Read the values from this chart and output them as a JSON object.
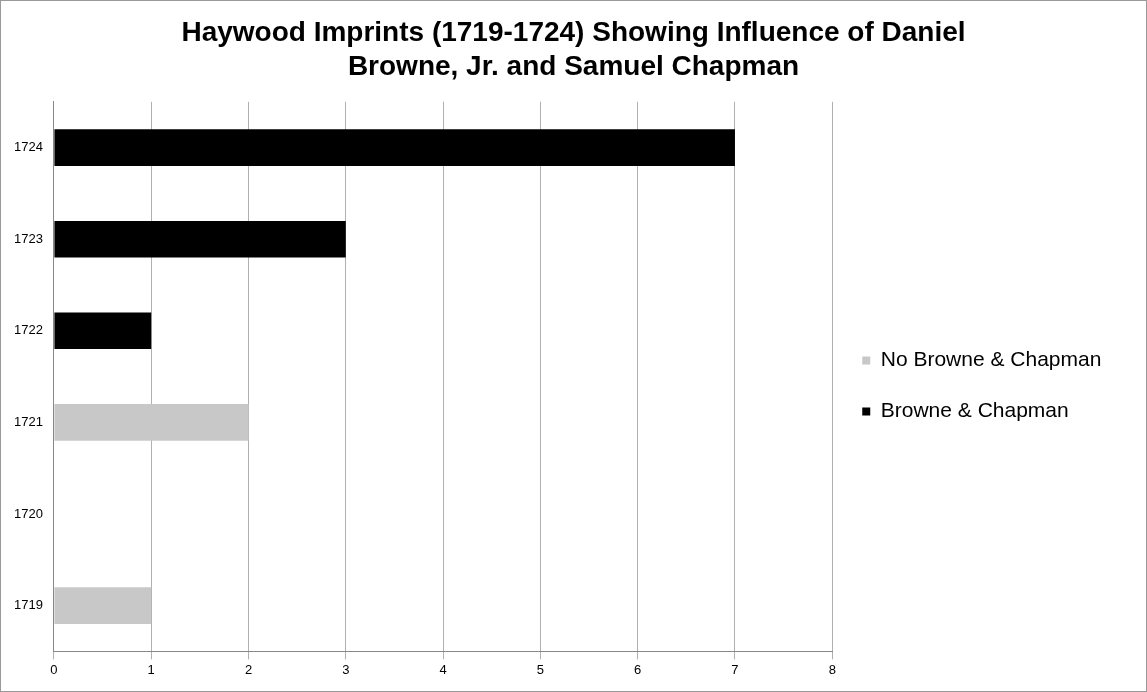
{
  "chart_data": {
    "type": "bar",
    "title": "Haywood Imprints (1719-1724) Showing Influence of Daniel Browne, Jr. and Samuel Chapman",
    "orientation": "horizontal",
    "stacked": true,
    "categories": [
      "1724",
      "1723",
      "1722",
      "1721",
      "1720",
      "1719"
    ],
    "series": [
      {
        "name": "No Browne & Chapman",
        "color": "#c8c8c8",
        "values": [
          null,
          null,
          null,
          2,
          null,
          1
        ]
      },
      {
        "name": "Browne & Chapman",
        "color": "#000000",
        "values": [
          7,
          3,
          1,
          null,
          null,
          null
        ]
      }
    ],
    "xlim": [
      0,
      8
    ],
    "xticks": [
      0,
      1,
      2,
      3,
      4,
      5,
      6,
      7,
      8
    ],
    "grid": "x",
    "legend": "right"
  }
}
